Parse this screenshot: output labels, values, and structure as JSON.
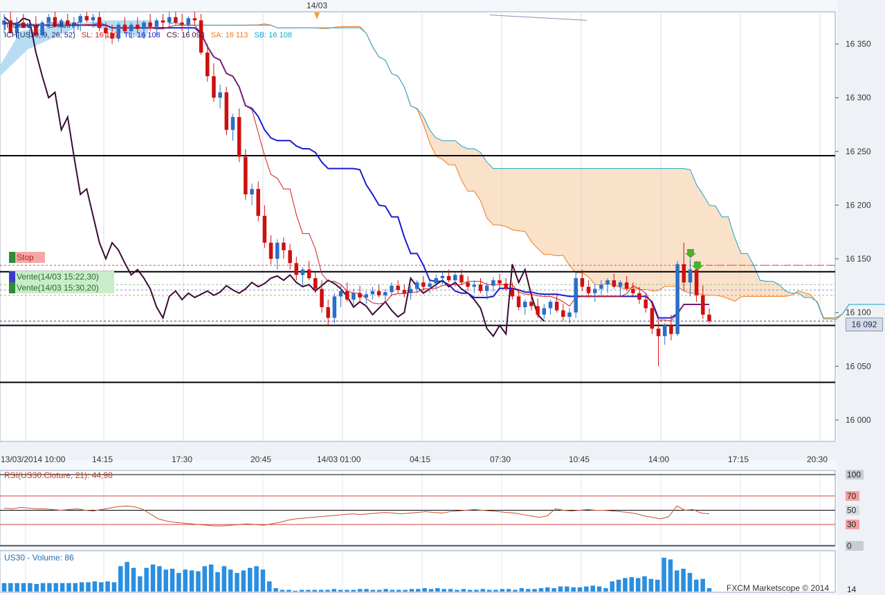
{
  "chart_data": {
    "type": "candlestick",
    "title": "",
    "source_label": "[Indicateur : ICHICYP]",
    "indicator_legend": {
      "prefix": "ICH(US30, 9, 26, 52)",
      "items": [
        {
          "text": "SL: 16 119",
          "color": "#d11a1a"
        },
        {
          "text": "TL: 16 108",
          "color": "#1a1acf"
        },
        {
          "text": "CS: 16 093",
          "color": "#3a0a36"
        },
        {
          "text": "SA: 16 113",
          "color": "#f07a1a"
        },
        {
          "text": "SB: 16 108",
          "color": "#1ba3c9"
        }
      ]
    },
    "price_axis": {
      "ticks": [
        "16 350",
        "16 300",
        "16 250",
        "16 200",
        "16 150",
        "16 100",
        "16 050",
        "16 000"
      ],
      "ylim": [
        15980,
        16380
      ]
    },
    "time_axis": {
      "labels": [
        "13/03/2014 10:00",
        "14:15",
        "17:30",
        "20:45",
        "14/03 01:00",
        "04:15",
        "07:30",
        "10:45",
        "14:00",
        "17:15",
        "20:30"
      ]
    },
    "top_date_marker": "14/03",
    "current_price": "16 092",
    "horizontal_levels": [
      16246,
      16138,
      16088,
      16035
    ],
    "dashed_levels": [
      {
        "value": 16144,
        "color": "#e05050"
      },
      {
        "value": 16121,
        "color": "#8090d0"
      },
      {
        "value": 16126,
        "color": "#90c090"
      },
      {
        "value": 16116,
        "color": "#e0a040"
      },
      {
        "value": 16092,
        "color": "#404080"
      }
    ],
    "trade_markers": [
      {
        "label": "Stop",
        "value": 16155
      },
      {
        "label": "Vente(14/03 15:22,30)",
        "value": 16138
      },
      {
        "label": "Vente(14/03 15:30,20)",
        "value": 16124
      }
    ],
    "candles": [
      [
        16368,
        16378,
        16360,
        16372
      ],
      [
        16372,
        16380,
        16362,
        16360
      ],
      [
        16360,
        16375,
        16355,
        16370
      ],
      [
        16370,
        16378,
        16365,
        16365
      ],
      [
        16365,
        16370,
        16355,
        16368
      ],
      [
        16368,
        16376,
        16360,
        16358
      ],
      [
        16358,
        16372,
        16356,
        16370
      ],
      [
        16370,
        16378,
        16364,
        16375
      ],
      [
        16375,
        16380,
        16368,
        16366
      ],
      [
        16366,
        16374,
        16360,
        16372
      ],
      [
        16372,
        16378,
        16365,
        16368
      ],
      [
        16368,
        16375,
        16360,
        16370
      ],
      [
        16370,
        16378,
        16362,
        16376
      ],
      [
        16376,
        16380,
        16370,
        16372
      ],
      [
        16372,
        16378,
        16365,
        16375
      ],
      [
        16375,
        16380,
        16362,
        16365
      ],
      [
        16365,
        16370,
        16355,
        16360
      ],
      [
        16360,
        16368,
        16350,
        16355
      ],
      [
        16355,
        16370,
        16352,
        16368
      ],
      [
        16368,
        16375,
        16360,
        16362
      ],
      [
        16362,
        16370,
        16355,
        16368
      ],
      [
        16368,
        16375,
        16360,
        16364
      ],
      [
        16364,
        16372,
        16355,
        16370
      ],
      [
        16370,
        16378,
        16362,
        16366
      ],
      [
        16366,
        16374,
        16358,
        16372
      ],
      [
        16372,
        16378,
        16365,
        16370
      ],
      [
        16370,
        16380,
        16365,
        16375
      ],
      [
        16375,
        16380,
        16368,
        16370
      ],
      [
        16370,
        16378,
        16362,
        16368
      ],
      [
        16368,
        16376,
        16360,
        16374
      ],
      [
        16374,
        16380,
        16368,
        16372
      ],
      [
        16372,
        16378,
        16340,
        16342
      ],
      [
        16342,
        16350,
        16315,
        16320
      ],
      [
        16320,
        16332,
        16296,
        16300
      ],
      [
        16300,
        16312,
        16290,
        16305
      ],
      [
        16305,
        16310,
        16265,
        16270
      ],
      [
        16270,
        16285,
        16260,
        16282
      ],
      [
        16282,
        16290,
        16240,
        16245
      ],
      [
        16245,
        16252,
        16205,
        16210
      ],
      [
        16210,
        16220,
        16200,
        16215
      ],
      [
        16215,
        16222,
        16185,
        16190
      ],
      [
        16190,
        16200,
        16160,
        16165
      ],
      [
        16165,
        16172,
        16145,
        16150
      ],
      [
        16150,
        16168,
        16140,
        16165
      ],
      [
        16165,
        16170,
        16150,
        16158
      ],
      [
        16158,
        16164,
        16140,
        16146
      ],
      [
        16146,
        16152,
        16130,
        16135
      ],
      [
        16135,
        16142,
        16125,
        16140
      ],
      [
        16140,
        16148,
        16130,
        16132
      ],
      [
        16132,
        16138,
        16118,
        16122
      ],
      [
        16122,
        16130,
        16100,
        16105
      ],
      [
        16105,
        16112,
        16088,
        16095
      ],
      [
        16095,
        16118,
        16090,
        16115
      ],
      [
        16115,
        16125,
        16105,
        16120
      ],
      [
        16120,
        16128,
        16110,
        16112
      ],
      [
        16112,
        16122,
        16105,
        16118
      ],
      [
        16118,
        16125,
        16110,
        16114
      ],
      [
        16114,
        16120,
        16108,
        16117
      ],
      [
        16117,
        16124,
        16112,
        16120
      ],
      [
        16120,
        16126,
        16114,
        16116
      ],
      [
        16116,
        16122,
        16110,
        16119
      ],
      [
        16119,
        16128,
        16115,
        16125
      ],
      [
        16125,
        16130,
        16118,
        16121
      ],
      [
        16121,
        16126,
        16114,
        16118
      ],
      [
        16118,
        16125,
        16112,
        16122
      ],
      [
        16122,
        16130,
        16118,
        16128
      ],
      [
        16128,
        16134,
        16120,
        16124
      ],
      [
        16124,
        16130,
        16118,
        16127
      ],
      [
        16127,
        16135,
        16122,
        16132
      ],
      [
        16132,
        16138,
        16126,
        16134
      ],
      [
        16134,
        16140,
        16128,
        16130
      ],
      [
        16130,
        16137,
        16124,
        16135
      ],
      [
        16135,
        16140,
        16126,
        16128
      ],
      [
        16128,
        16134,
        16120,
        16124
      ],
      [
        16124,
        16130,
        16118,
        16126
      ],
      [
        16126,
        16132,
        16118,
        16120
      ],
      [
        16120,
        16128,
        16112,
        16125
      ],
      [
        16125,
        16133,
        16119,
        16130
      ],
      [
        16130,
        16136,
        16122,
        16127
      ],
      [
        16127,
        16132,
        16120,
        16122
      ],
      [
        16122,
        16128,
        16112,
        16115
      ],
      [
        16115,
        16122,
        16102,
        16105
      ],
      [
        16105,
        16112,
        16098,
        16110
      ],
      [
        16110,
        16118,
        16102,
        16106
      ],
      [
        16106,
        16113,
        16095,
        16098
      ],
      [
        16098,
        16108,
        16094,
        16104
      ],
      [
        16104,
        16112,
        16098,
        16110
      ],
      [
        16110,
        16118,
        16100,
        16102
      ],
      [
        16102,
        16108,
        16092,
        16096
      ],
      [
        16096,
        16104,
        16090,
        16100
      ],
      [
        16100,
        16138,
        16095,
        16132
      ],
      [
        16132,
        16140,
        16120,
        16124
      ],
      [
        16124,
        16130,
        16114,
        16118
      ],
      [
        16118,
        16126,
        16110,
        16122
      ],
      [
        16122,
        16130,
        16116,
        16126
      ],
      [
        16126,
        16132,
        16118,
        16130
      ],
      [
        16130,
        16136,
        16122,
        16124
      ],
      [
        16124,
        16130,
        16116,
        16128
      ],
      [
        16128,
        16134,
        16120,
        16122
      ],
      [
        16122,
        16128,
        16114,
        16118
      ],
      [
        16118,
        16124,
        16108,
        16112
      ],
      [
        16112,
        16118,
        16100,
        16104
      ],
      [
        16104,
        16110,
        16080,
        16085
      ],
      [
        16085,
        16092,
        16050,
        16078
      ],
      [
        16078,
        16090,
        16070,
        16088
      ],
      [
        16088,
        16098,
        16074,
        16080
      ],
      [
        16080,
        16148,
        16078,
        16145
      ],
      [
        16145,
        16165,
        16120,
        16128
      ],
      [
        16128,
        16150,
        16115,
        16140
      ],
      [
        16140,
        16148,
        16110,
        16116
      ],
      [
        16116,
        16125,
        16094,
        16098
      ],
      [
        16098,
        16104,
        16090,
        16092
      ]
    ],
    "rsi": {
      "label": "RSI(US30.Cloture, 21): 44,98",
      "levels": [
        "100",
        "70",
        "50",
        "30",
        "0"
      ],
      "values": [
        53,
        52,
        54,
        53,
        52,
        52,
        51,
        50,
        51,
        52,
        50,
        49,
        51,
        53,
        55,
        56,
        55,
        52,
        45,
        38,
        35,
        33,
        32,
        31,
        30,
        29,
        28,
        28,
        29,
        30,
        31,
        30,
        29,
        31,
        33,
        36,
        38,
        39,
        40,
        41,
        42,
        43,
        44,
        45,
        44,
        45,
        46,
        47,
        46,
        45,
        46,
        47,
        48,
        47,
        46,
        48,
        49,
        50,
        51,
        50,
        49,
        48,
        47,
        46,
        44,
        42,
        40,
        42,
        52,
        50,
        49,
        50,
        51,
        50,
        50,
        49,
        48,
        47,
        45,
        42,
        40,
        38,
        41,
        56,
        50,
        51,
        46,
        45
      ]
    },
    "volume": {
      "label": "US30 - Volume: 86",
      "values": [
        10,
        10,
        10,
        10,
        10,
        9,
        10,
        10,
        10,
        10,
        10,
        10,
        11,
        11,
        12,
        11,
        12,
        11,
        30,
        35,
        28,
        18,
        28,
        32,
        30,
        26,
        27,
        22,
        26,
        25,
        24,
        30,
        32,
        23,
        30,
        26,
        22,
        25,
        28,
        30,
        26,
        12,
        4,
        2,
        2,
        1,
        2,
        2,
        2,
        2,
        2,
        3,
        2,
        2,
        2,
        3,
        3,
        2,
        2,
        3,
        2,
        2,
        2,
        3,
        3,
        4,
        3,
        4,
        3,
        3,
        2,
        3,
        2,
        2,
        3,
        2,
        2,
        3,
        3,
        2,
        4,
        3,
        3,
        4,
        5,
        4,
        6,
        6,
        5,
        5,
        6,
        7,
        6,
        4,
        12,
        14,
        16,
        17,
        16,
        18,
        15,
        14,
        40,
        38,
        25,
        27,
        22,
        14,
        15,
        4
      ]
    }
  },
  "ui": {
    "footer": "FXCM Marketscope © 2014",
    "bottom_axis_label": "14"
  }
}
